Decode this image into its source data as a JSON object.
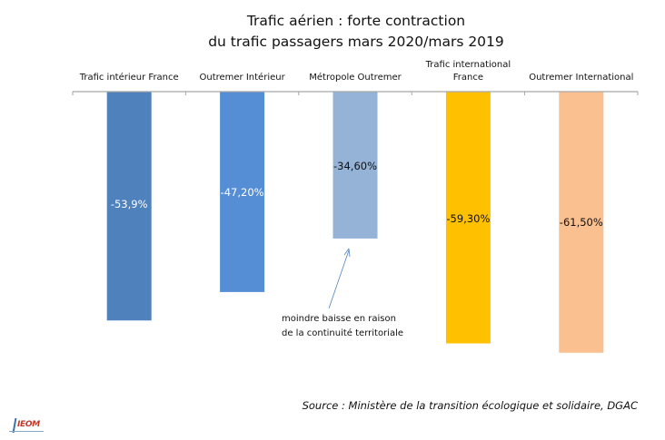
{
  "chart_data": {
    "type": "bar",
    "title": [
      "Trafic aérien : forte contraction",
      "du trafic passagers mars 2020/mars 2019"
    ],
    "categories": [
      [
        "Trafic intérieur France"
      ],
      [
        "Outremer Intérieur"
      ],
      [
        "Métropole Outremer"
      ],
      [
        "Trafic international",
        "France"
      ],
      [
        "Outremer International"
      ]
    ],
    "values": [
      -53.9,
      -47.2,
      -34.6,
      -59.3,
      -61.5
    ],
    "data_labels": [
      "-53,9%",
      "-47,20%",
      "-34,60%",
      "-59,30%",
      "-61,50%"
    ],
    "colors": [
      "#4f81bd",
      "#558ed5",
      "#95b3d7",
      "#ffc000",
      "#fac090"
    ],
    "label_colors": [
      "#ffffff",
      "#ffffff",
      "#111111",
      "#111111",
      "#111111"
    ],
    "xlabel": "",
    "ylabel": "",
    "ylim": [
      -62,
      0
    ],
    "grid": false,
    "legend": "none",
    "category_axis_position": "top",
    "annotation": {
      "lines": [
        "moindre baisse en raison",
        "de la continuité territoriale"
      ],
      "points_to": "Métropole Outremer"
    }
  },
  "source": "Source : Ministère de la transition écologique et solidaire, DGAC",
  "logo": {
    "text": "IEOM"
  }
}
